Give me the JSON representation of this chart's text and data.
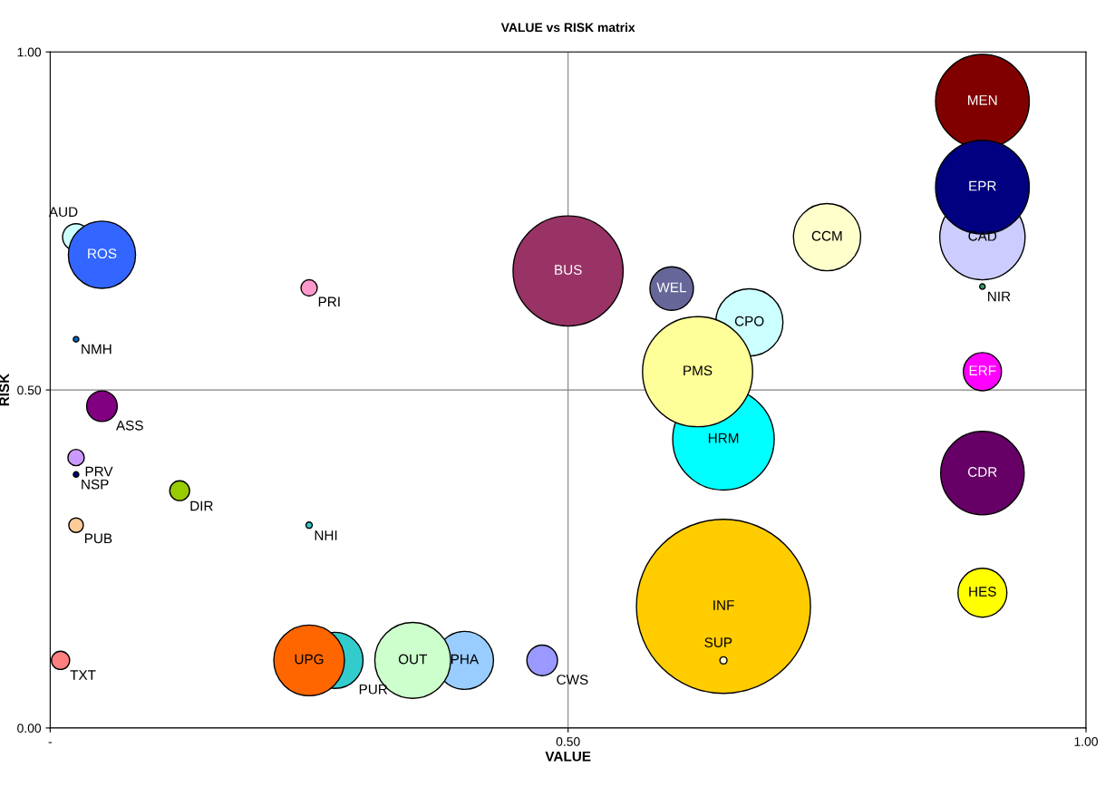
{
  "chart_data": {
    "type": "bubble",
    "title": "VALUE vs RISK matrix",
    "xlabel": "VALUE",
    "ylabel": "RISK",
    "xlim": [
      0,
      1
    ],
    "ylim": [
      0,
      1
    ],
    "xticks": [
      {
        "value": 0,
        "label": "-"
      },
      {
        "value": 0.5,
        "label": "0.50"
      },
      {
        "value": 1,
        "label": "1.00"
      }
    ],
    "yticks": [
      {
        "value": 0,
        "label": "0.00"
      },
      {
        "value": 0.5,
        "label": "0.50"
      },
      {
        "value": 1,
        "label": "1.00"
      }
    ],
    "grid": true,
    "legend": false,
    "x": [
      0.9,
      0.9,
      0.9,
      0.9,
      0.9,
      0.9,
      0.9,
      0.75,
      0.6,
      0.675,
      0.625,
      0.65,
      0.65,
      0.65,
      0.5,
      0.475,
      0.4,
      0.35,
      0.275,
      0.25,
      0.25,
      0.25,
      0.125,
      0.05,
      0.05,
      0.025,
      0.025,
      0.025,
      0.025,
      0.025,
      0.01
    ],
    "values": [
      0.927,
      0.8,
      0.726,
      0.653,
      0.527,
      0.377,
      0.2,
      0.726,
      0.65,
      0.6,
      0.527,
      0.427,
      0.18,
      0.1,
      0.676,
      0.1,
      0.1,
      0.1,
      0.1,
      0.1,
      0.651,
      0.3,
      0.351,
      0.476,
      0.7,
      0.726,
      0.575,
      0.4,
      0.375,
      0.3,
      0.1
    ],
    "sizes": [
      0.29,
      0.29,
      0.24,
      0.001,
      0.048,
      0.23,
      0.079,
      0.149,
      0.0625,
      0.149,
      0.4,
      0.34,
      1,
      0.0017,
      0.4,
      0.031,
      0.111,
      0.19,
      0.104,
      0.165,
      0.0088,
      0.0013,
      0.013,
      0.031,
      0.149,
      0.024,
      0.001,
      0.0088,
      0.001,
      0.007,
      0.011
    ],
    "colors": [
      "#800000",
      "#000080",
      "#ccccff",
      "#339966",
      "#ff00ff",
      "#660066",
      "#ffff00",
      "#ffffcc",
      "#666699",
      "#ccffff",
      "#ffff99",
      "#00ffff",
      "#ffcc00",
      "#ffffcc",
      "#993366",
      "#9999ff",
      "#99ccff",
      "#ccffcc",
      "#33cccc",
      "#ff6600",
      "#ff99cc",
      "#33cccc",
      "#99cc00",
      "#800080",
      "#3366ff",
      "#ccffff",
      "#0066cc",
      "#cc99ff",
      "#000080",
      "#ffcc99",
      "#ff8080"
    ],
    "annotations": [
      {
        "text": "MEN",
        "x": 0.9,
        "y": 0.927
      },
      {
        "text": "EPR",
        "x": 0.9,
        "y": 0.8
      },
      {
        "text": "CAD",
        "x": 0.9,
        "y": 0.726
      },
      {
        "text": "NIR",
        "x": 0.9,
        "y": 0.653
      },
      {
        "text": "ERF",
        "x": 0.9,
        "y": 0.527
      },
      {
        "text": "CDR",
        "x": 0.9,
        "y": 0.377
      },
      {
        "text": "HES",
        "x": 0.9,
        "y": 0.2
      },
      {
        "text": "CCM",
        "x": 0.75,
        "y": 0.726
      },
      {
        "text": "WEL",
        "x": 0.6,
        "y": 0.65
      },
      {
        "text": "CPO",
        "x": 0.675,
        "y": 0.6
      },
      {
        "text": "PMS",
        "x": 0.625,
        "y": 0.527
      },
      {
        "text": "HRM",
        "x": 0.65,
        "y": 0.427
      },
      {
        "text": "INF",
        "x": 0.65,
        "y": 0.18
      },
      {
        "text": "SUP",
        "x": 0.65,
        "y": 0.1
      },
      {
        "text": "BUS",
        "x": 0.5,
        "y": 0.676
      },
      {
        "text": "CWS",
        "x": 0.475,
        "y": 0.1
      },
      {
        "text": "PHA",
        "x": 0.4,
        "y": 0.1
      },
      {
        "text": "OUT",
        "x": 0.35,
        "y": 0.1
      },
      {
        "text": "PUR",
        "x": 0.275,
        "y": 0.1
      },
      {
        "text": "UPG",
        "x": 0.25,
        "y": 0.1
      },
      {
        "text": "PRI",
        "x": 0.25,
        "y": 0.651
      },
      {
        "text": "NHI",
        "x": 0.25,
        "y": 0.3
      },
      {
        "text": "DIR",
        "x": 0.125,
        "y": 0.351
      },
      {
        "text": "ASS",
        "x": 0.05,
        "y": 0.476
      },
      {
        "text": "ROS",
        "x": 0.05,
        "y": 0.7
      },
      {
        "text": "AUD",
        "x": 0.025,
        "y": 0.726
      },
      {
        "text": "NMH",
        "x": 0.025,
        "y": 0.575
      },
      {
        "text": "PRV",
        "x": 0.025,
        "y": 0.4
      },
      {
        "text": "NSP",
        "x": 0.025,
        "y": 0.375
      },
      {
        "text": "PUB",
        "x": 0.025,
        "y": 0.3
      },
      {
        "text": "TXT",
        "x": 0.01,
        "y": 0.1
      }
    ]
  }
}
